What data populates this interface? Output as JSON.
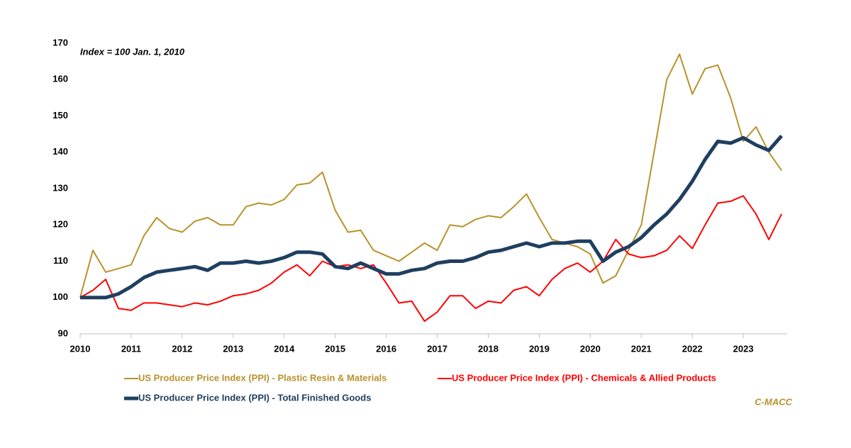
{
  "chart_data": {
    "type": "line",
    "annotation": "Index = 100 Jan. 1, 2010",
    "source": "C-MACC",
    "x": [
      2010,
      2010.25,
      2010.5,
      2010.75,
      2011,
      2011.25,
      2011.5,
      2011.75,
      2012,
      2012.25,
      2012.5,
      2012.75,
      2013,
      2013.25,
      2013.5,
      2013.75,
      2014,
      2014.25,
      2014.5,
      2014.75,
      2015,
      2015.25,
      2015.5,
      2015.75,
      2016,
      2016.25,
      2016.5,
      2016.75,
      2017,
      2017.25,
      2017.5,
      2017.75,
      2018,
      2018.25,
      2018.5,
      2018.75,
      2019,
      2019.25,
      2019.5,
      2019.75,
      2020,
      2020.25,
      2020.5,
      2020.75,
      2021,
      2021.25,
      2021.5,
      2021.75,
      2022,
      2022.25,
      2022.5,
      2022.75,
      2023,
      2023.25,
      2023.5,
      2023.75
    ],
    "series": [
      {
        "name": "US Producer Price Index (PPI) - Plastic Resin & Materials",
        "color": "#b8922a",
        "width": 2,
        "values": [
          100,
          113,
          107,
          108,
          109,
          117,
          122,
          119,
          118,
          121,
          122,
          120,
          120,
          125,
          126,
          125.5,
          127,
          131,
          131.5,
          134.5,
          124,
          118,
          118.5,
          113,
          111.5,
          110,
          112.5,
          115,
          113,
          120,
          119.5,
          121.5,
          122.5,
          122,
          125,
          128.5,
          122,
          116,
          115,
          114,
          112,
          104,
          106,
          113,
          120,
          140,
          160,
          167,
          156,
          163,
          164,
          155,
          143,
          147,
          140,
          135
        ]
      },
      {
        "name": "US Producer Price Index (PPI) - Chemicals & Allied Products",
        "color": "#ff0000",
        "width": 2,
        "values": [
          100,
          102,
          105,
          97,
          96.5,
          98.5,
          98.5,
          98,
          97.5,
          98.5,
          98,
          99,
          100.5,
          101,
          102,
          104,
          107,
          109,
          106,
          110,
          108.5,
          109,
          108,
          109,
          104,
          98.5,
          99,
          93.5,
          96,
          100.5,
          100.5,
          97,
          99,
          98.5,
          102,
          103,
          100.5,
          105,
          108,
          109.5,
          107,
          110,
          116,
          112,
          111,
          111.5,
          113,
          117,
          113.5,
          120,
          126,
          126.5,
          128,
          123,
          116,
          123
        ]
      },
      {
        "name": "US Producer Price Index (PPI) - Total Finished Goods",
        "color": "#1f3f60",
        "width": 5,
        "values": [
          100,
          100,
          100,
          101,
          103,
          105.5,
          107,
          107.5,
          108,
          108.5,
          107.5,
          109.5,
          109.5,
          110,
          109.5,
          110,
          111,
          112.5,
          112.5,
          112,
          108.5,
          108,
          109.5,
          108,
          106.5,
          106.5,
          107.5,
          108,
          109.5,
          110,
          110,
          111,
          112.5,
          113,
          114,
          115,
          114,
          115,
          115,
          115.5,
          115.5,
          110,
          112.5,
          114,
          116.5,
          120,
          123,
          127,
          132,
          138,
          143,
          142.5,
          144,
          142,
          140.5,
          144.5
        ]
      }
    ],
    "xlim": [
      2010,
      2023.86
    ],
    "xticks": [
      2010,
      2011,
      2012,
      2013,
      2014,
      2015,
      2016,
      2017,
      2018,
      2019,
      2020,
      2021,
      2022,
      2023
    ],
    "ylim": [
      90,
      170
    ],
    "yticks": [
      90,
      100,
      110,
      120,
      130,
      140,
      150,
      160,
      170
    ]
  }
}
